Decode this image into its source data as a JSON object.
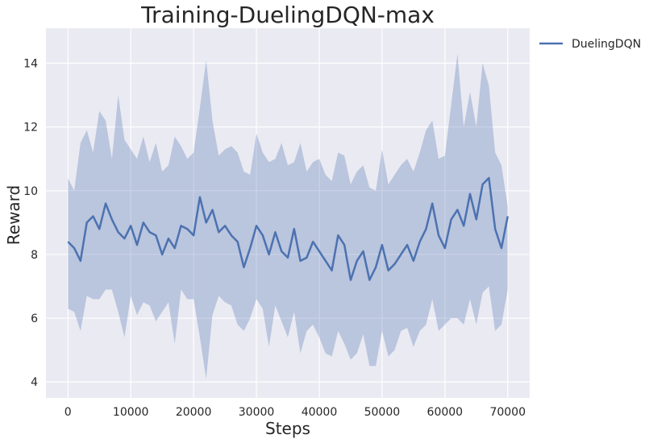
{
  "chart_data": {
    "type": "line",
    "title": "Training-DuelingDQN-max",
    "xlabel": "Steps",
    "ylabel": "Reward",
    "xlim": [
      -3500,
      73500
    ],
    "ylim": [
      3.5,
      15.1
    ],
    "xticks": [
      0,
      10000,
      20000,
      30000,
      40000,
      50000,
      60000,
      70000
    ],
    "xtick_labels": [
      "0",
      "10000",
      "20000",
      "30000",
      "40000",
      "50000",
      "60000",
      "70000"
    ],
    "yticks": [
      4,
      6,
      8,
      10,
      12,
      14
    ],
    "ytick_labels": [
      "4",
      "6",
      "8",
      "10",
      "12",
      "14"
    ],
    "grid": true,
    "legend_position": "outside-top-right",
    "series": [
      {
        "name": "DuelingDQN",
        "color": "#4c72b0",
        "band_color": "#4c72b0",
        "x": [
          0,
          1000,
          2000,
          3000,
          4000,
          5000,
          6000,
          7000,
          8000,
          9000,
          10000,
          11000,
          12000,
          13000,
          14000,
          15000,
          16000,
          17000,
          18000,
          19000,
          20000,
          21000,
          22000,
          23000,
          24000,
          25000,
          26000,
          27000,
          28000,
          29000,
          30000,
          31000,
          32000,
          33000,
          34000,
          35000,
          36000,
          37000,
          38000,
          39000,
          40000,
          41000,
          42000,
          43000,
          44000,
          45000,
          46000,
          47000,
          48000,
          49000,
          50000,
          51000,
          52000,
          53000,
          54000,
          55000,
          56000,
          57000,
          58000,
          59000,
          60000,
          61000,
          62000,
          63000,
          64000,
          65000,
          66000,
          67000,
          68000,
          69000,
          70000
        ],
        "y": [
          8.4,
          8.2,
          7.8,
          9.0,
          9.2,
          8.8,
          9.6,
          9.1,
          8.7,
          8.5,
          8.9,
          8.3,
          9.0,
          8.7,
          8.6,
          8.0,
          8.5,
          8.2,
          8.9,
          8.8,
          8.6,
          9.8,
          9.0,
          9.4,
          8.7,
          8.9,
          8.6,
          8.4,
          7.6,
          8.2,
          8.9,
          8.6,
          8.0,
          8.7,
          8.1,
          7.9,
          8.8,
          7.8,
          7.9,
          8.4,
          8.1,
          7.8,
          7.5,
          8.6,
          8.3,
          7.2,
          7.8,
          8.1,
          7.2,
          7.6,
          8.3,
          7.5,
          7.7,
          8.0,
          8.3,
          7.8,
          8.4,
          8.8,
          9.6,
          8.6,
          8.2,
          9.1,
          9.4,
          8.9,
          9.9,
          9.1,
          10.2,
          10.4,
          8.8,
          8.2,
          9.2
        ],
        "y_max": [
          10.4,
          10.0,
          11.5,
          11.9,
          11.2,
          12.5,
          12.2,
          11.0,
          13.0,
          11.6,
          11.3,
          11.0,
          11.7,
          10.9,
          11.5,
          10.6,
          10.8,
          11.7,
          11.4,
          11.0,
          11.2,
          12.6,
          14.1,
          12.2,
          11.1,
          11.3,
          11.4,
          11.2,
          10.6,
          10.5,
          11.8,
          11.2,
          10.9,
          11.0,
          11.5,
          10.8,
          10.9,
          11.5,
          10.6,
          10.9,
          11.0,
          10.5,
          10.3,
          11.2,
          11.1,
          10.2,
          10.6,
          10.8,
          10.1,
          10.0,
          11.3,
          10.2,
          10.5,
          10.8,
          11.0,
          10.6,
          11.2,
          11.9,
          12.2,
          11.0,
          11.1,
          12.7,
          14.3,
          12.0,
          13.1,
          12.0,
          14.0,
          13.3,
          11.2,
          10.8,
          9.5
        ],
        "y_min": [
          6.3,
          6.2,
          5.6,
          6.7,
          6.6,
          6.6,
          6.9,
          6.9,
          6.2,
          5.4,
          6.7,
          6.1,
          6.5,
          6.4,
          5.9,
          6.2,
          6.5,
          5.2,
          6.9,
          6.6,
          6.6,
          5.4,
          4.1,
          6.1,
          6.7,
          6.5,
          6.4,
          5.8,
          5.6,
          6.0,
          6.6,
          6.3,
          5.1,
          6.4,
          5.9,
          5.4,
          6.2,
          4.9,
          5.6,
          5.8,
          5.4,
          4.9,
          4.8,
          5.6,
          5.2,
          4.7,
          4.9,
          5.5,
          4.5,
          4.5,
          5.6,
          4.8,
          5.0,
          5.6,
          5.7,
          5.1,
          5.6,
          5.8,
          6.6,
          5.6,
          5.8,
          6.0,
          6.0,
          5.8,
          6.6,
          5.8,
          6.8,
          7.0,
          5.6,
          5.8,
          6.9
        ]
      }
    ]
  }
}
